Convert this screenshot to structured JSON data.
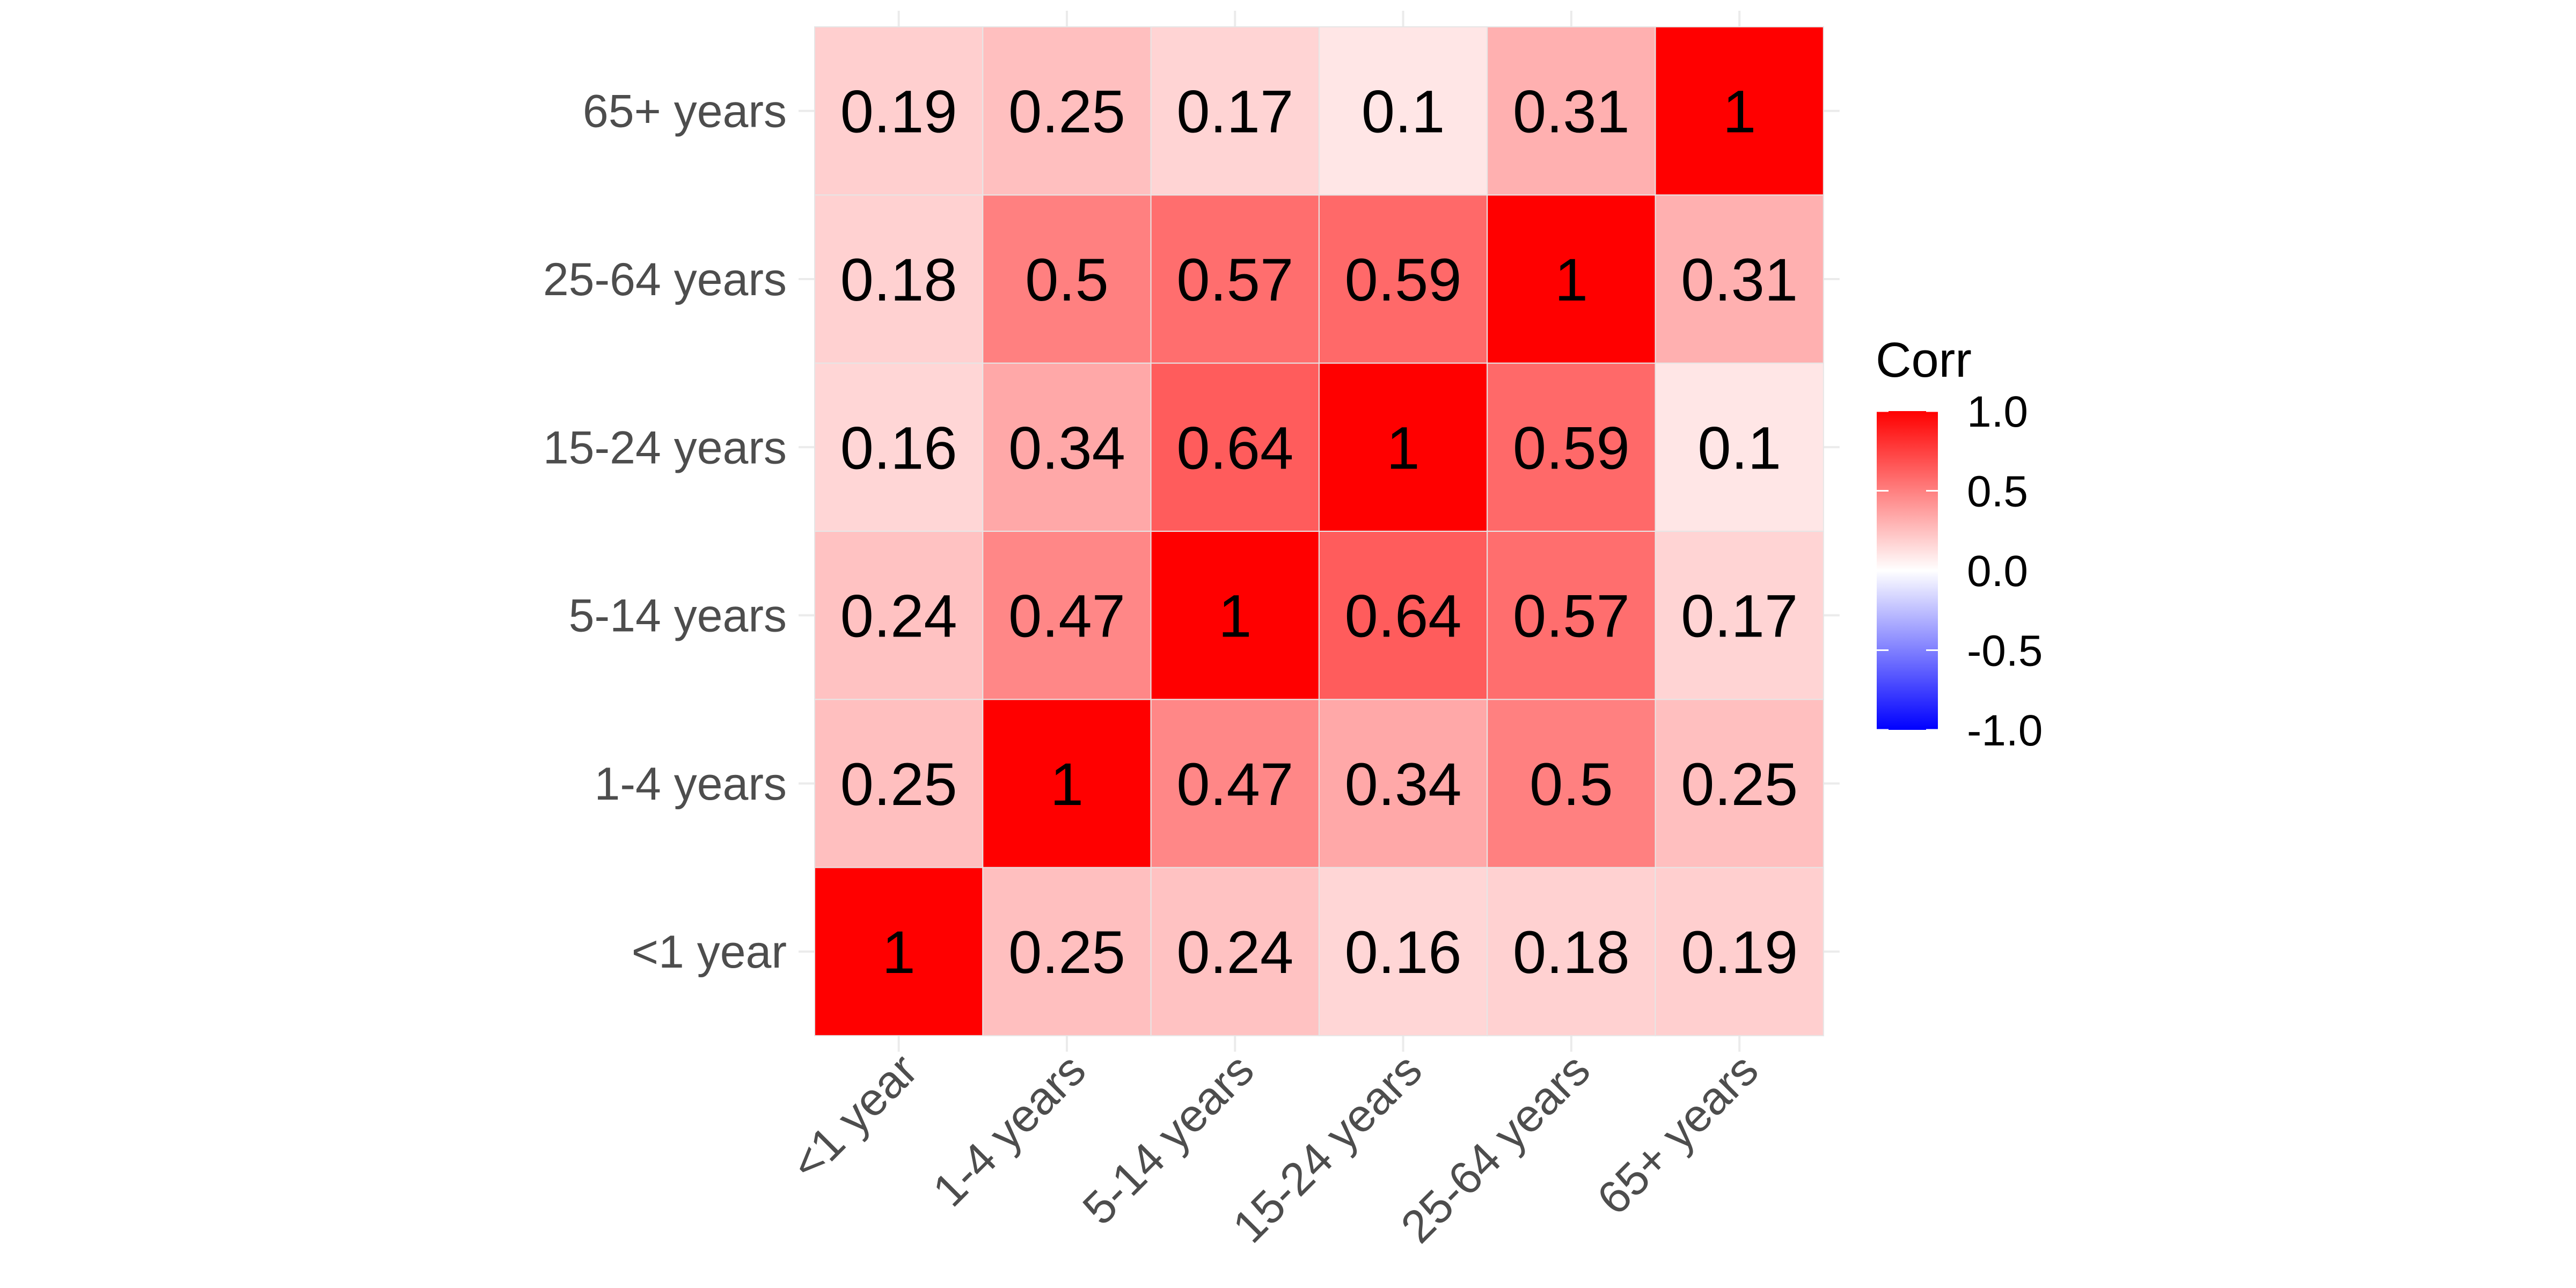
{
  "chart_data": {
    "type": "heatmap",
    "title": "",
    "xlabel": "",
    "ylabel": "",
    "categories": [
      "<1 year",
      "1-4 years",
      "5-14 years",
      "15-24 years",
      "25-64 years",
      "65+ years"
    ],
    "matrix": [
      [
        1,
        0.25,
        0.24,
        0.16,
        0.18,
        0.19
      ],
      [
        0.25,
        1,
        0.47,
        0.34,
        0.5,
        0.25
      ],
      [
        0.24,
        0.47,
        1,
        0.64,
        0.57,
        0.17
      ],
      [
        0.16,
        0.34,
        0.64,
        1,
        0.59,
        0.1
      ],
      [
        0.18,
        0.5,
        0.57,
        0.59,
        1,
        0.31
      ],
      [
        0.19,
        0.25,
        0.17,
        0.1,
        0.31,
        1
      ]
    ],
    "cell_labels": [
      [
        "1",
        "0.25",
        "0.24",
        "0.16",
        "0.18",
        "0.19"
      ],
      [
        "0.25",
        "1",
        "0.47",
        "0.34",
        "0.5",
        "0.25"
      ],
      [
        "0.24",
        "0.47",
        "1",
        "0.64",
        "0.57",
        "0.17"
      ],
      [
        "0.16",
        "0.34",
        "0.64",
        "1",
        "0.59",
        "0.1"
      ],
      [
        "0.18",
        "0.5",
        "0.57",
        "0.59",
        "1",
        "0.31"
      ],
      [
        "0.19",
        "0.25",
        "0.17",
        "0.1",
        "0.31",
        "1"
      ]
    ],
    "legend": {
      "title": "Corr",
      "placement": "right",
      "range": [
        -1,
        1
      ],
      "tick_values": [
        1.0,
        0.5,
        0.0,
        -0.5,
        -1.0
      ],
      "tick_labels": [
        "1.0",
        "0.5",
        "0.0",
        "-0.5",
        "-1.0"
      ]
    },
    "colors": {
      "low": "#0000ff",
      "mid": "#ffffff",
      "high": "#ff0000",
      "grid": "#ebebeb"
    },
    "grid": true
  }
}
